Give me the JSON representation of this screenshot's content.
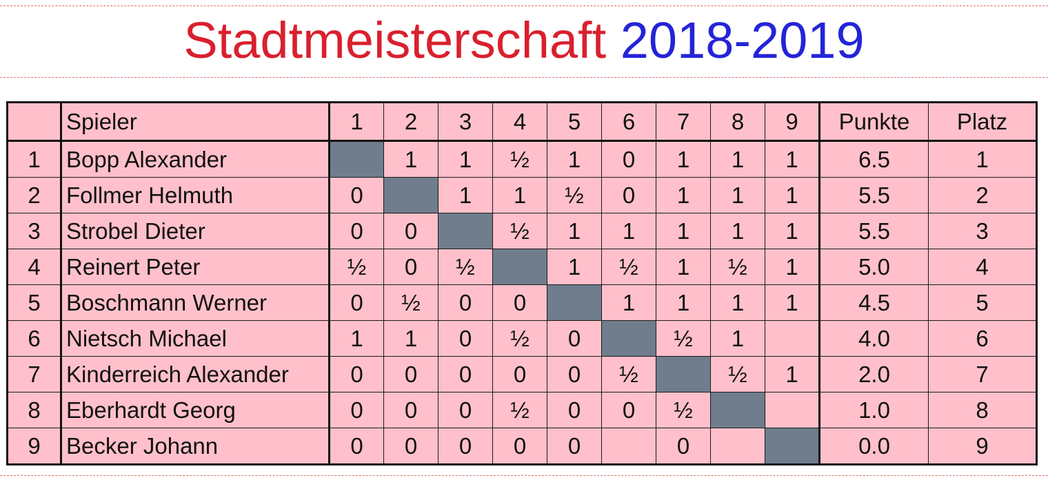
{
  "title": {
    "part1": "Stadtmeisterschaft",
    "part2": "2018-2019"
  },
  "colors": {
    "table_bg": "#ffc0cb",
    "diagonal_cell": "#6f7d8c",
    "title_part1": "#d9202e",
    "title_part2": "#2424d8"
  },
  "table": {
    "header": {
      "corner": "",
      "player": "Spieler",
      "opponents": [
        "1",
        "2",
        "3",
        "4",
        "5",
        "6",
        "7",
        "8",
        "9"
      ],
      "points": "Punkte",
      "rank": "Platz"
    },
    "rows": [
      {
        "nr": "1",
        "name": "Bopp Alexander",
        "results": [
          "",
          "1",
          "1",
          "½",
          "1",
          "0",
          "1",
          "1",
          "1"
        ],
        "points": "6.5",
        "rank": "1"
      },
      {
        "nr": "2",
        "name": "Follmer Helmuth",
        "results": [
          "0",
          "",
          "1",
          "1",
          "½",
          "0",
          "1",
          "1",
          "1"
        ],
        "points": "5.5",
        "rank": "2"
      },
      {
        "nr": "3",
        "name": "Strobel Dieter",
        "results": [
          "0",
          "0",
          "",
          "½",
          "1",
          "1",
          "1",
          "1",
          "1"
        ],
        "points": "5.5",
        "rank": "3"
      },
      {
        "nr": "4",
        "name": "Reinert Peter",
        "results": [
          "½",
          "0",
          "½",
          "",
          "1",
          "½",
          "1",
          "½",
          "1"
        ],
        "points": "5.0",
        "rank": "4"
      },
      {
        "nr": "5",
        "name": "Boschmann Werner",
        "results": [
          "0",
          "½",
          "0",
          "0",
          "",
          "1",
          "1",
          "1",
          "1"
        ],
        "points": "4.5",
        "rank": "5"
      },
      {
        "nr": "6",
        "name": "Nietsch Michael",
        "results": [
          "1",
          "1",
          "0",
          "½",
          "0",
          "",
          "½",
          "1",
          ""
        ],
        "points": "4.0",
        "rank": "6"
      },
      {
        "nr": "7",
        "name": "Kinderreich Alexander",
        "results": [
          "0",
          "0",
          "0",
          "0",
          "0",
          "½",
          "",
          "½",
          "1"
        ],
        "points": "2.0",
        "rank": "7"
      },
      {
        "nr": "8",
        "name": "Eberhardt Georg",
        "results": [
          "0",
          "0",
          "0",
          "½",
          "0",
          "0",
          "½",
          "",
          ""
        ],
        "points": "1.0",
        "rank": "8"
      },
      {
        "nr": "9",
        "name": "Becker Johann",
        "results": [
          "0",
          "0",
          "0",
          "0",
          "0",
          "",
          "0",
          "",
          ""
        ],
        "points": "0.0",
        "rank": "9"
      }
    ]
  }
}
